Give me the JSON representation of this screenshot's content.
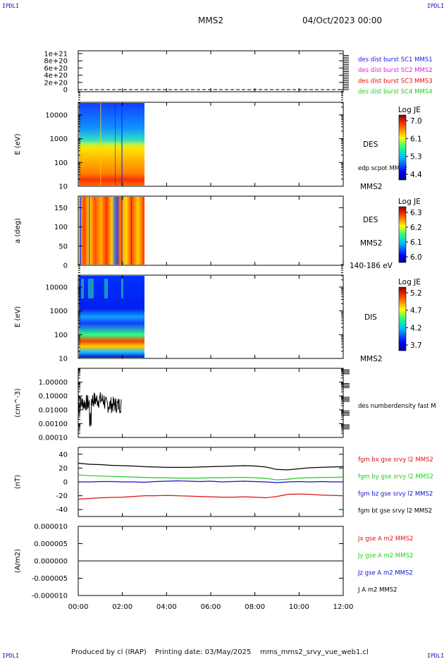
{
  "header": {
    "corner_left": "IPDLI",
    "corner_right": "IPDLI",
    "mission": "MMS2",
    "date": "04/Oct/2023 00:00",
    "corner_bl": "IPDLI",
    "corner_br": "IPDLI"
  },
  "footer": {
    "producer": "Produced by cl (IRAP)",
    "printing": "Printing date: 03/May/2025",
    "product": "mms_mms2_srvy_vue_web1.cl"
  },
  "colors": {
    "c1": "#2020dd",
    "c2": "#dd20dd",
    "c3": "#dd1010",
    "c4": "#20cc20",
    "bx": "#dd1010",
    "by": "#20cc20",
    "bz": "#1010cc",
    "bt": "#000000"
  },
  "chart_data": {
    "type": "stacked-timeseries",
    "x_ticks": [
      "00:00",
      "02:00",
      "04:00",
      "06:00",
      "08:00",
      "10:00",
      "12:00"
    ],
    "x_range_hours": [
      0,
      12
    ],
    "panels": [
      {
        "id": "dist-burst",
        "type": "line",
        "y_ticks": [
          "0",
          "2e+20",
          "4e+20",
          "6e+20",
          "8e+20",
          "1e+21"
        ],
        "legend": [
          "des dist burst SC1 MMS1",
          "des dist burst SC2 MMS2",
          "des dist burst SC3 MMS3",
          "des dist burst SC4 MMS4"
        ],
        "series_value": 0
      },
      {
        "id": "des-energy",
        "type": "heatmap",
        "ylabel": "E (eV)",
        "y_ticks": [
          "10",
          "100",
          "1000",
          "10000"
        ],
        "scale": "log",
        "data_end_hours": 3.0,
        "instrument": "DES",
        "spacecraft": "MMS2",
        "extra_label": "edp scpot MMS2",
        "colorbar_title": "Log JE",
        "colorbar_ticks": [
          "7.0",
          "6.1",
          "5.3",
          "4.4"
        ]
      },
      {
        "id": "des-pitch",
        "type": "heatmap",
        "ylabel": "a (deg)",
        "y_ticks": [
          "0",
          "50",
          "100",
          "150"
        ],
        "y_range": [
          0,
          180
        ],
        "data_end_hours": 3.0,
        "instrument": "DES",
        "spacecraft": "MMS2",
        "extra_label": "140-186 eV",
        "colorbar_title": "Log JE",
        "colorbar_ticks": [
          "6.3",
          "6.2",
          "6.1",
          "6.0"
        ]
      },
      {
        "id": "dis-energy",
        "type": "heatmap",
        "ylabel": "E (eV)",
        "y_ticks": [
          "10",
          "100",
          "1000",
          "10000"
        ],
        "scale": "log",
        "data_end_hours": 3.0,
        "instrument": "DIS",
        "spacecraft": "MMS2",
        "colorbar_title": "Log JE",
        "colorbar_ticks": [
          "5.2",
          "4.7",
          "4.2",
          "3.7"
        ]
      },
      {
        "id": "density",
        "type": "line",
        "ylabel": "(cm^-3)",
        "y_ticks": [
          "0.00010",
          "0.00100",
          "0.01000",
          "0.10000",
          "1.00000"
        ],
        "scale": "log",
        "legend": [
          "des numberdensity fast M"
        ]
      },
      {
        "id": "fgm",
        "type": "line",
        "ylabel": "(nT)",
        "y_ticks": [
          "-40",
          "-20",
          "0",
          "20",
          "40"
        ],
        "y_range": [
          -50,
          50
        ],
        "legend": [
          "fgm bx gse srvy l2 MMS2",
          "fgm by gse srvy l2 MMS2",
          "fgm bz gse srvy l2 MMS2",
          "fgm bt gse srvy l2 MMS2"
        ],
        "series": [
          {
            "key": "bt",
            "x": [
              0,
              0.5,
              1,
              1.5,
              2,
              2.5,
              3,
              3.5,
              4,
              4.5,
              5,
              5.5,
              6,
              6.5,
              7,
              7.5,
              8,
              8.5,
              9,
              9.5,
              10,
              10.5,
              11,
              11.5,
              12
            ],
            "y": [
              27,
              25.5,
              25,
              24,
              23.5,
              23,
              22,
              21.5,
              21,
              21,
              21,
              21.5,
              22,
              22.5,
              23,
              23.5,
              23,
              21.5,
              18,
              17.5,
              19,
              20.5,
              21,
              21.5,
              22
            ]
          },
          {
            "key": "by",
            "x": [
              0,
              0.5,
              1,
              1.5,
              2,
              2.5,
              3,
              3.5,
              4,
              4.5,
              5,
              5.5,
              6,
              6.5,
              7,
              7.5,
              8,
              8.5,
              9,
              9.5,
              10,
              10.5,
              11,
              11.5,
              12
            ],
            "y": [
              10,
              9,
              8.5,
              8,
              7.5,
              7,
              6.5,
              6,
              6,
              5.5,
              5.5,
              5.5,
              6,
              6,
              6.5,
              6.5,
              6,
              5,
              3,
              4,
              5.5,
              6,
              6.5,
              6.5,
              7
            ]
          },
          {
            "key": "bz",
            "x": [
              0,
              0.5,
              1,
              1.5,
              2,
              2.5,
              3,
              3.5,
              4,
              4.5,
              5,
              5.5,
              6,
              6.5,
              7,
              7.5,
              8,
              8.5,
              9,
              9.5,
              10,
              10.5,
              11,
              11.5,
              12
            ],
            "y": [
              0,
              0,
              0.5,
              0.5,
              0,
              0,
              -0.5,
              0.5,
              1,
              1.5,
              1,
              0.5,
              1,
              0,
              0.5,
              1,
              0.5,
              0,
              -1,
              0,
              0.5,
              0,
              0.5,
              0,
              0
            ]
          },
          {
            "key": "bx",
            "x": [
              0,
              0.5,
              1,
              1.5,
              2,
              2.5,
              3,
              3.5,
              4,
              4.5,
              5,
              5.5,
              6,
              6.5,
              7,
              7.5,
              8,
              8.5,
              9,
              9.5,
              10,
              10.5,
              11,
              11.5,
              12
            ],
            "y": [
              -25,
              -24,
              -23,
              -22.5,
              -22,
              -21,
              -20,
              -20,
              -19.5,
              -20,
              -20.5,
              -21,
              -21.5,
              -22,
              -22,
              -21.5,
              -22,
              -23,
              -21,
              -18,
              -17.5,
              -18,
              -19,
              -19.5,
              -20
            ]
          }
        ]
      },
      {
        "id": "current",
        "type": "line",
        "ylabel": "(A/m2)",
        "y_ticks": [
          "-0.000010",
          "-0.000005",
          "0.000000",
          "0.000005",
          "0.000010"
        ],
        "y_range": [
          -1e-05,
          1e-05
        ],
        "legend": [
          "Jx gse A m2 MMS2",
          "Jy gse A m2 MMS2",
          "Jz gse A m2 MMS2",
          "J A m2 MMS2"
        ],
        "series_value": 0
      }
    ]
  }
}
